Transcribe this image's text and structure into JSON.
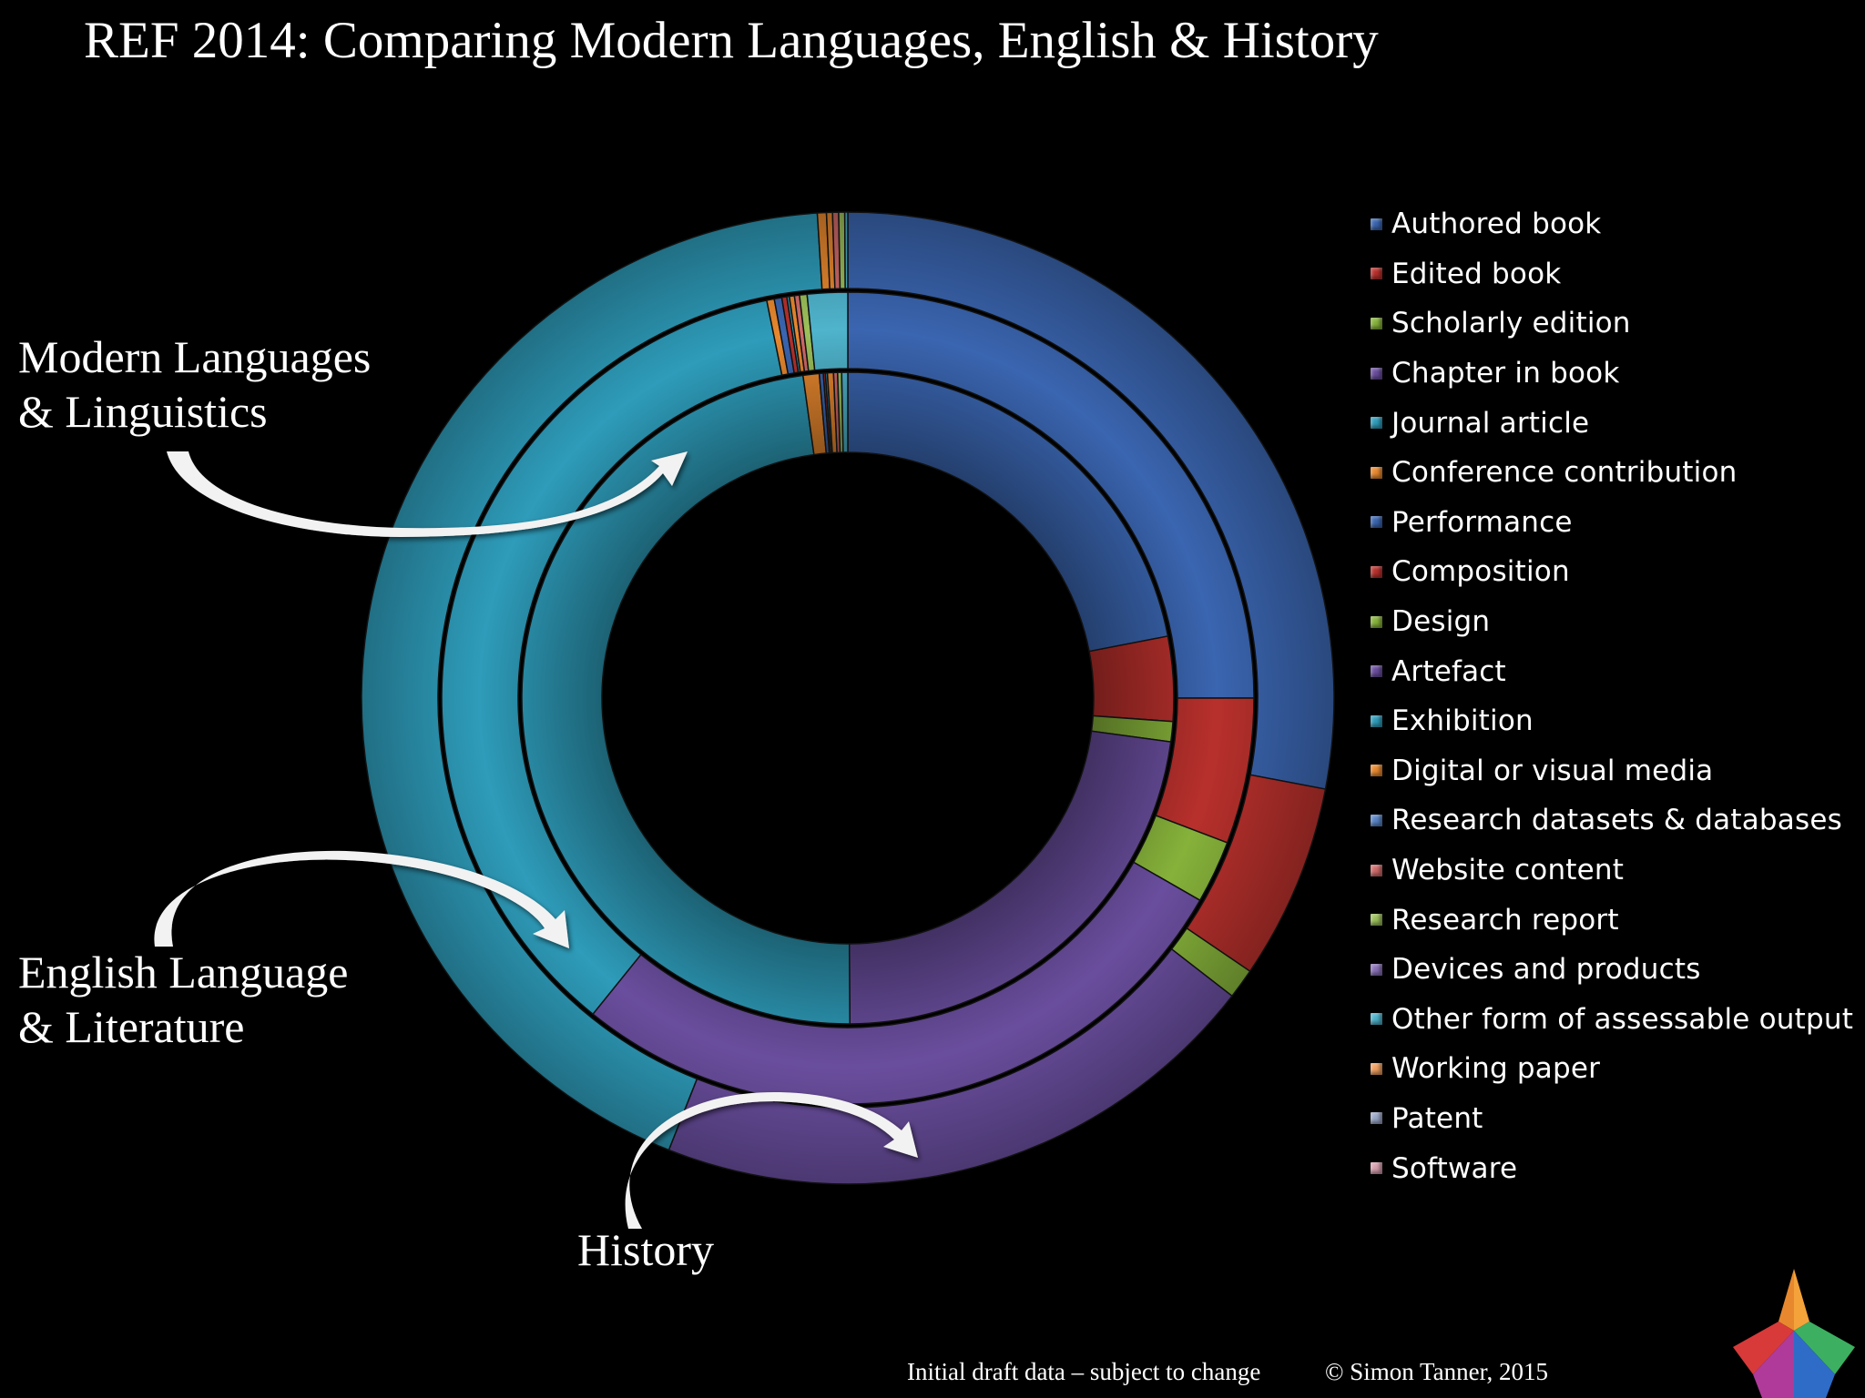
{
  "title": "REF 2014: Comparing Modern Languages, English & History",
  "ring_labels": {
    "modern_languages": [
      "Modern Languages",
      "& Linguistics"
    ],
    "english": [
      "English Language",
      "& Literature"
    ],
    "history": "History"
  },
  "footer": {
    "note": "Initial draft data – subject to change",
    "copyright": "© Simon Tanner, 2015"
  },
  "chart_data": {
    "type": "doughnut",
    "title": "REF 2014: Comparing Modern Languages, English & History",
    "legend_position": "right",
    "categories": [
      "Authored book",
      "Edited book",
      "Scholarly edition",
      "Chapter in book",
      "Journal article",
      "Conference contribution",
      "Performance",
      "Composition",
      "Design",
      "Artefact",
      "Exhibition",
      "Digital or visual media",
      "Research datasets & databases",
      "Website content",
      "Research report",
      "Devices and products",
      "Other form of assessable output",
      "Working paper",
      "Patent",
      "Software"
    ],
    "colors": [
      "#3a65b0",
      "#b8302c",
      "#86b23a",
      "#6a4e9e",
      "#2e9cba",
      "#e8882e",
      "#3a65b0",
      "#b8302c",
      "#86b23a",
      "#6a4e9e",
      "#2e9cba",
      "#e8882e",
      "#5a86c8",
      "#d06a6a",
      "#9cc05a",
      "#8a72b8",
      "#4fb4cc",
      "#f0a060",
      "#9aa8c8",
      "#d8a0b0"
    ],
    "series": [
      {
        "name": "Modern Languages & Linguistics",
        "ring": "inner",
        "values": [
          22.0,
          4.2,
          1.0,
          22.8,
          48.0,
          0.8,
          0.2,
          0.1,
          0,
          0,
          0.1,
          0.3,
          0,
          0.2,
          0.2,
          0,
          0.3,
          0,
          0,
          0
        ]
      },
      {
        "name": "English Language & Literature",
        "ring": "middle",
        "values": [
          25.0,
          5.8,
          2.5,
          27.5,
          36.0,
          0.3,
          0.3,
          0.2,
          0,
          0,
          0.1,
          0.2,
          0,
          0.2,
          0.3,
          0,
          1.6,
          0,
          0,
          0
        ]
      },
      {
        "name": "History",
        "ring": "outer",
        "values": [
          28.0,
          6.5,
          1.0,
          20.5,
          43.0,
          0.3,
          0,
          0,
          0,
          0,
          0,
          0.2,
          0,
          0.2,
          0.2,
          0,
          0.1,
          0,
          0,
          0
        ]
      }
    ]
  }
}
